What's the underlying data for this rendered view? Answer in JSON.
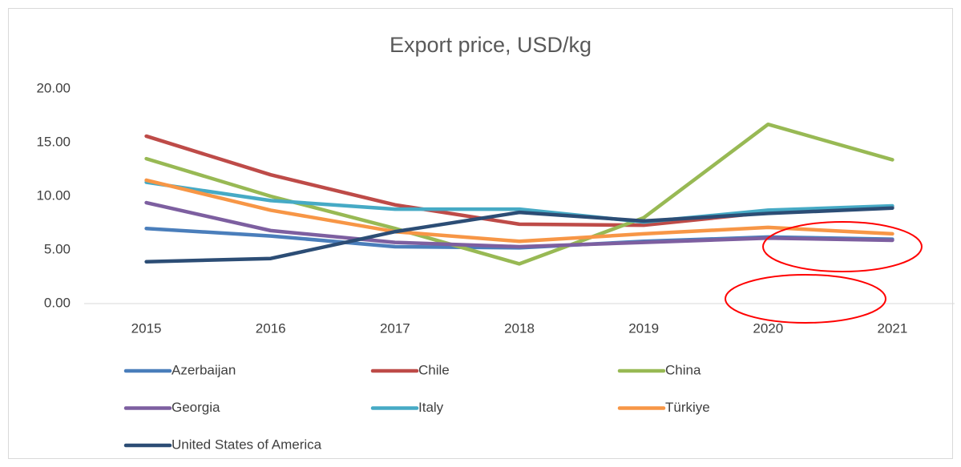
{
  "chart_data": {
    "type": "line",
    "title": "Export price, USD/kg",
    "categories": [
      "2015",
      "2016",
      "2017",
      "2018",
      "2019",
      "2020",
      "2021"
    ],
    "series": [
      {
        "name": "Azerbaijan",
        "color": "#4a7ebb",
        "values": [
          7.0,
          6.3,
          5.3,
          5.2,
          5.8,
          6.2,
          6.0
        ]
      },
      {
        "name": "Chile",
        "color": "#be4b48",
        "values": [
          15.6,
          12.0,
          9.2,
          7.4,
          7.3,
          8.5,
          9.0
        ]
      },
      {
        "name": "China",
        "color": "#98b954",
        "values": [
          13.5,
          10.0,
          7.0,
          3.7,
          8.0,
          16.7,
          13.4
        ]
      },
      {
        "name": "Georgia",
        "color": "#7d5fa0",
        "values": [
          9.4,
          6.8,
          5.7,
          5.3,
          5.7,
          6.1,
          5.9
        ]
      },
      {
        "name": "Italy",
        "color": "#46aac5",
        "values": [
          11.3,
          9.6,
          8.8,
          8.8,
          7.6,
          8.7,
          9.1
        ]
      },
      {
        "name": "Türkiye",
        "color": "#f79646",
        "values": [
          11.5,
          8.7,
          6.7,
          5.8,
          6.5,
          7.1,
          6.5
        ]
      },
      {
        "name": "United States of America",
        "color": "#2c4d75",
        "values": [
          3.9,
          4.2,
          6.7,
          8.5,
          7.7,
          8.4,
          8.9
        ]
      }
    ],
    "ylim": [
      0,
      20
    ],
    "yticks": [
      {
        "value": 0,
        "label": "0.00"
      },
      {
        "value": 5,
        "label": "5.00"
      },
      {
        "value": 10,
        "label": "10.00"
      },
      {
        "value": 15,
        "label": "15.00"
      },
      {
        "value": 20,
        "label": "20.00"
      }
    ],
    "grid": false,
    "legend": "bottom"
  }
}
